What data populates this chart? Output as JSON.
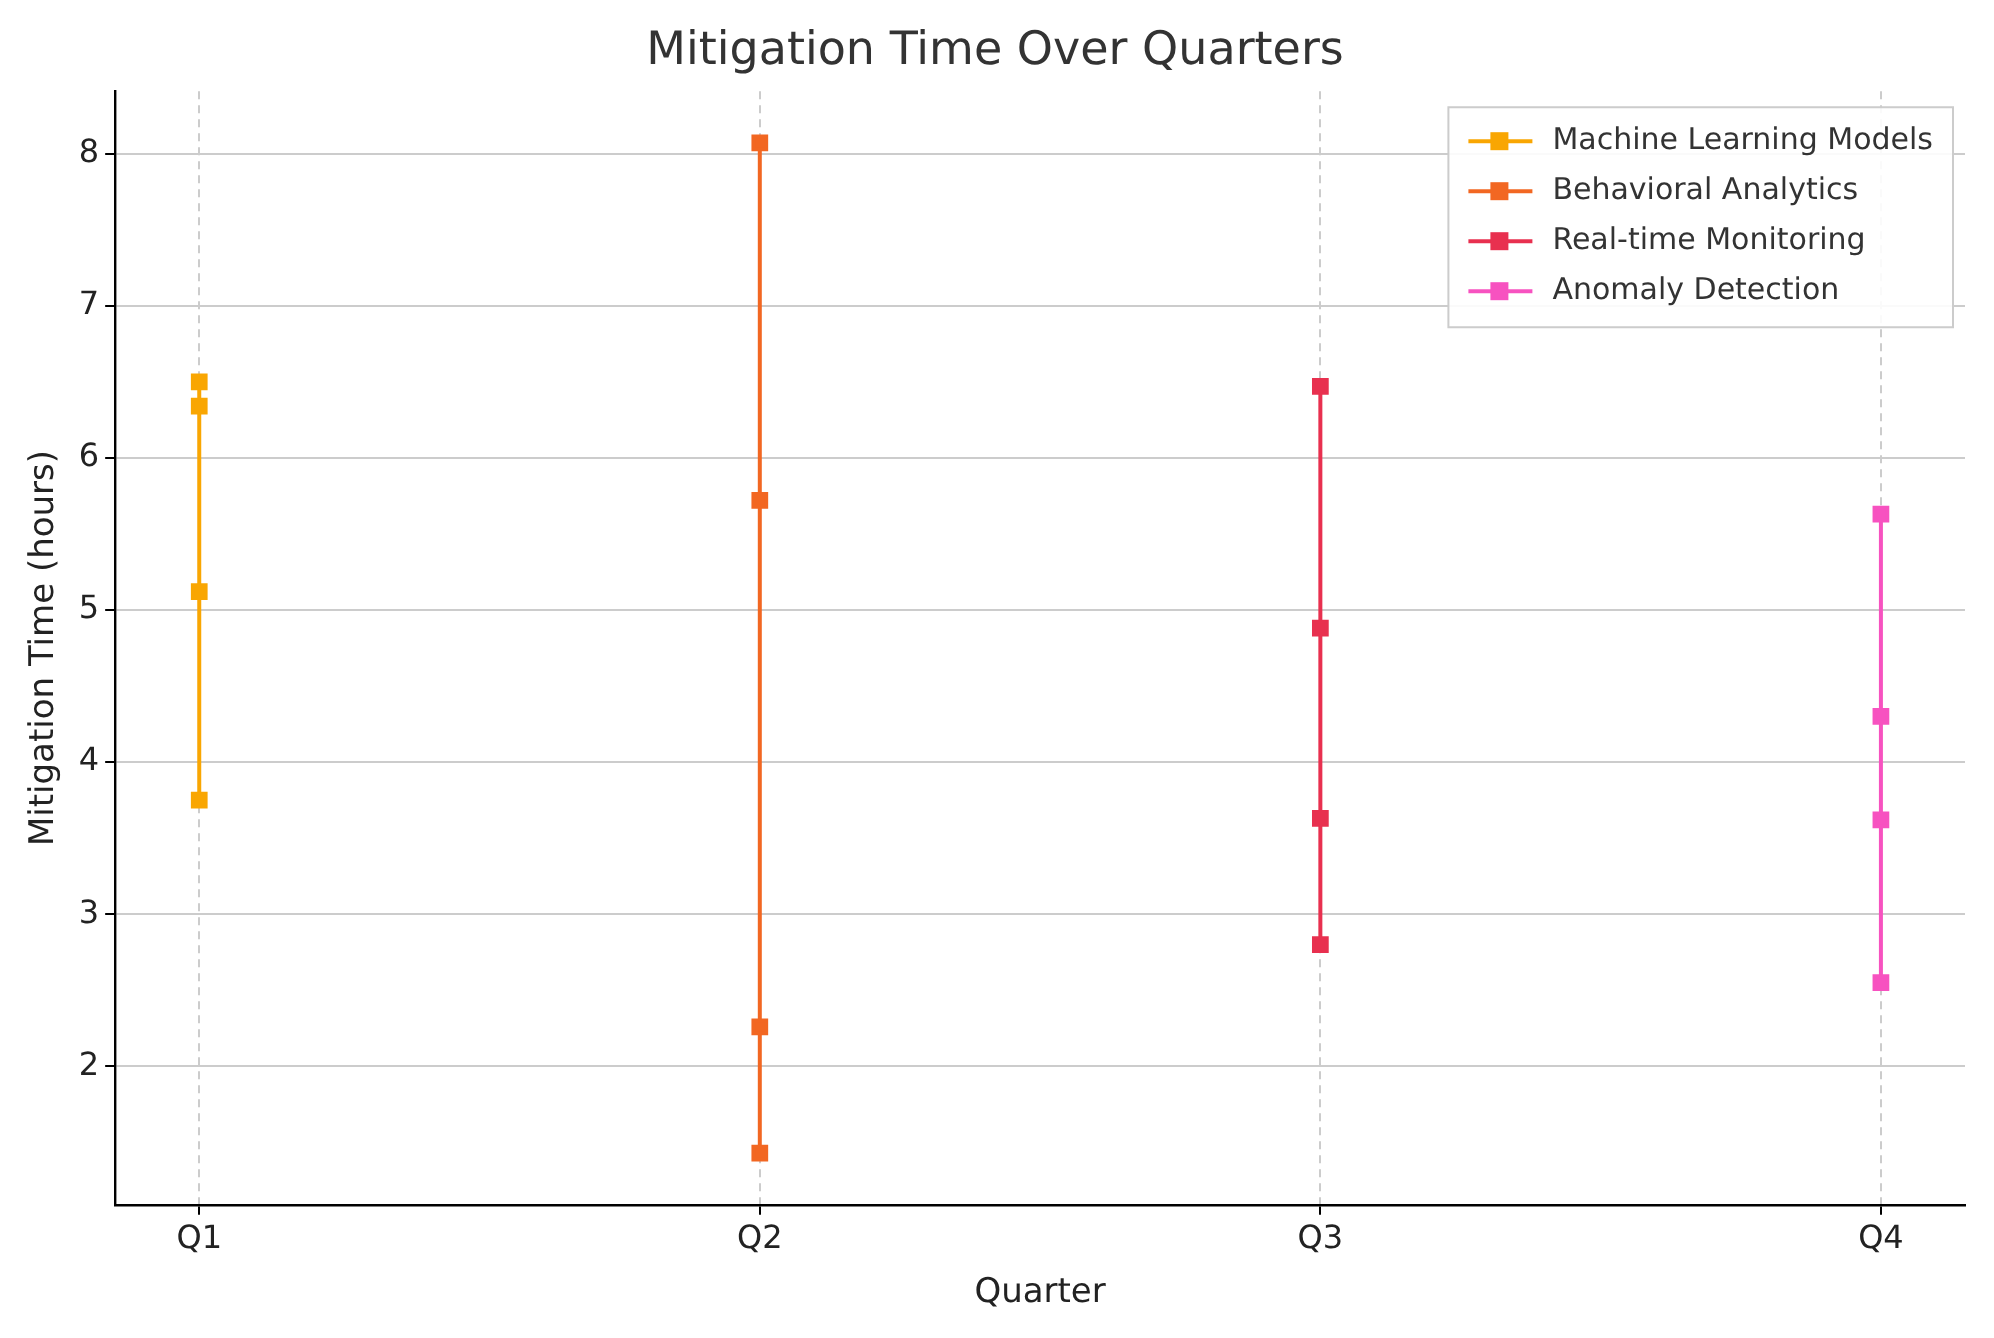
{
  "chart_data": {
    "type": "line",
    "title": "Mitigation Time Over Quarters",
    "xlabel": "Quarter",
    "ylabel": "Mitigation Time (hours)",
    "categories": [
      "Q1",
      "Q2",
      "Q3",
      "Q4"
    ],
    "series": [
      {
        "name": "Machine Learning Models",
        "color": "#f9a602",
        "x": [
          "Q1",
          "Q1",
          "Q1",
          "Q1"
        ],
        "values": [
          6.5,
          6.34,
          5.12,
          3.75
        ]
      },
      {
        "name": "Behavioral Analytics",
        "color": "#f26722",
        "x": [
          "Q2",
          "Q2",
          "Q2",
          "Q2"
        ],
        "values": [
          8.07,
          5.72,
          2.26,
          1.43
        ]
      },
      {
        "name": "Real-time Monitoring",
        "color": "#e8304f",
        "x": [
          "Q3",
          "Q3",
          "Q3",
          "Q3"
        ],
        "values": [
          6.47,
          4.88,
          3.63,
          2.8
        ]
      },
      {
        "name": "Anomaly Detection",
        "color": "#f752c0",
        "x": [
          "Q4",
          "Q4",
          "Q4",
          "Q4"
        ],
        "values": [
          5.63,
          4.3,
          3.62,
          2.55
        ]
      }
    ],
    "ylim": [
      1.09,
      8.41
    ],
    "yticks": [
      2,
      3,
      4,
      5,
      6,
      7,
      8
    ],
    "grid": true,
    "legend": "top right",
    "marker": "square",
    "line_style": "solid"
  }
}
